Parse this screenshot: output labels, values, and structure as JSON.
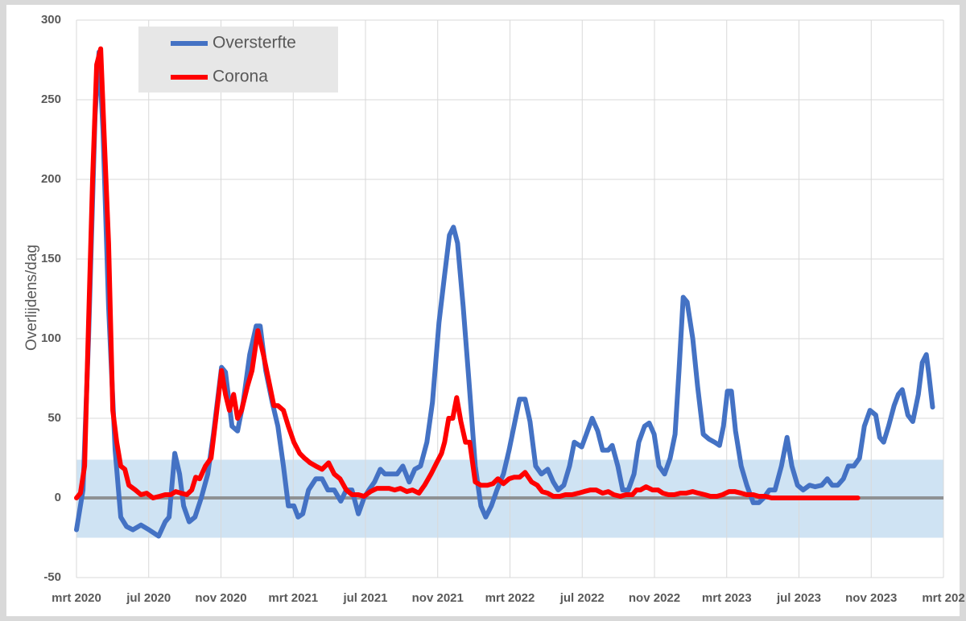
{
  "chart_data": {
    "type": "line",
    "ylabel": "Overlijdens/dag",
    "ylim": [
      -50,
      300
    ],
    "yticks": [
      -50,
      0,
      50,
      100,
      150,
      200,
      250,
      300
    ],
    "xlim": [
      0,
      48
    ],
    "xticks": [
      {
        "value": 0,
        "label": "mrt 2020"
      },
      {
        "value": 4,
        "label": "jul 2020"
      },
      {
        "value": 8,
        "label": "nov 2020"
      },
      {
        "value": 12,
        "label": "mrt 2021"
      },
      {
        "value": 16,
        "label": "jul 2021"
      },
      {
        "value": 20,
        "label": "nov 2021"
      },
      {
        "value": 24,
        "label": "mrt 2022"
      },
      {
        "value": 28,
        "label": "jul 2022"
      },
      {
        "value": 32,
        "label": "nov 2022"
      },
      {
        "value": 36,
        "label": "mrt 2023"
      },
      {
        "value": 40,
        "label": "jul 2023"
      },
      {
        "value": 44,
        "label": "nov 2023"
      },
      {
        "value": 48,
        "label": "mrt 202"
      }
    ],
    "grid": true,
    "legend": "top-left",
    "band": {
      "color": "#cfe3f3",
      "lower": -25,
      "upper": 24
    },
    "series": [
      {
        "name": "Oversterfte",
        "color": "#4472c4",
        "x": [
          0,
          0.36,
          0.67,
          1.03,
          1.25,
          1.47,
          1.78,
          2.14,
          2.45,
          2.77,
          3.12,
          3.57,
          4.01,
          4.55,
          4.91,
          5.13,
          5.44,
          5.71,
          5.93,
          6.24,
          6.56,
          6.91,
          7.27,
          7.58,
          8.03,
          8.25,
          8.61,
          8.92,
          9.23,
          9.59,
          9.95,
          10.17,
          10.48,
          10.84,
          11.15,
          11.46,
          11.73,
          12.04,
          12.27,
          12.53,
          12.85,
          13.25,
          13.6,
          13.92,
          14.27,
          14.63,
          14.94,
          15.25,
          15.61,
          15.92,
          16.19,
          16.5,
          16.82,
          17.08,
          17.39,
          17.75,
          18.07,
          18.42,
          18.73,
          19.05,
          19.4,
          19.71,
          20.07,
          20.38,
          20.65,
          20.87,
          21.1,
          21.41,
          21.72,
          22.08,
          22.39,
          22.66,
          22.97,
          23.28,
          23.64,
          23.95,
          24.31,
          24.53,
          24.84,
          25.11,
          25.42,
          25.74,
          26.09,
          26.4,
          26.67,
          26.98,
          27.3,
          27.56,
          27.97,
          28.23,
          28.55,
          28.86,
          29.13,
          29.44,
          29.66,
          29.97,
          30.24,
          30.55,
          30.87,
          31.13,
          31.45,
          31.71,
          31.98,
          32.25,
          32.56,
          32.87,
          33.14,
          33.36,
          33.59,
          33.81,
          34.12,
          34.39,
          34.7,
          35.01,
          35.33,
          35.6,
          35.82,
          36.04,
          36.26,
          36.49,
          36.8,
          37.11,
          37.47,
          37.78,
          38.05,
          38.36,
          38.67,
          39.03,
          39.34,
          39.61,
          39.92,
          40.23,
          40.59,
          40.9,
          41.26,
          41.57,
          41.84,
          42.15,
          42.46,
          42.73,
          43.04,
          43.35,
          43.62,
          43.93,
          44.25,
          44.47,
          44.69,
          44.96,
          45.27,
          45.5,
          45.72,
          46.03,
          46.3,
          46.61,
          46.83,
          47.05,
          47.19,
          47.4
        ],
        "values": [
          -20,
          5,
          100,
          240,
          280,
          230,
          120,
          30,
          -12,
          -18,
          -20,
          -17,
          -20,
          -24,
          -15,
          -12,
          28,
          15,
          -5,
          -15,
          -12,
          0,
          15,
          40,
          82,
          79,
          45,
          42,
          60,
          90,
          108,
          108,
          80,
          60,
          45,
          20,
          -5,
          -5,
          -12,
          -10,
          5,
          12,
          12,
          5,
          5,
          -2,
          5,
          5,
          -10,
          0,
          5,
          10,
          18,
          15,
          15,
          15,
          20,
          10,
          18,
          20,
          35,
          60,
          110,
          140,
          165,
          170,
          160,
          120,
          75,
          20,
          -5,
          -12,
          -5,
          5,
          15,
          30,
          50,
          62,
          62,
          48,
          20,
          15,
          18,
          10,
          5,
          8,
          20,
          35,
          32,
          40,
          50,
          42,
          30,
          30,
          33,
          20,
          5,
          5,
          15,
          35,
          45,
          47,
          40,
          20,
          15,
          25,
          40,
          80,
          126,
          123,
          100,
          70,
          40,
          37,
          35,
          33,
          45,
          67,
          67,
          42,
          20,
          8,
          -3,
          -3,
          0,
          5,
          5,
          20,
          38,
          20,
          8,
          5,
          8,
          7,
          8,
          12,
          8,
          8,
          12,
          20,
          20,
          25,
          45,
          55,
          52,
          38,
          35,
          45,
          58,
          65,
          68,
          52,
          48,
          65,
          85,
          90,
          78,
          57
        ]
      },
      {
        "name": "Corona",
        "color": "#ff0000",
        "x": [
          0,
          0.22,
          0.45,
          0.67,
          0.89,
          1.12,
          1.34,
          1.56,
          1.78,
          2.01,
          2.23,
          2.45,
          2.68,
          2.9,
          3.26,
          3.57,
          3.88,
          4.24,
          4.6,
          4.91,
          5.22,
          5.49,
          5.8,
          6.11,
          6.38,
          6.6,
          6.82,
          7.14,
          7.45,
          7.72,
          8.03,
          8.25,
          8.47,
          8.7,
          8.92,
          9.14,
          9.46,
          9.72,
          10.04,
          10.35,
          10.62,
          10.93,
          11.15,
          11.46,
          11.73,
          12.04,
          12.36,
          12.62,
          12.94,
          13.25,
          13.6,
          13.96,
          14.27,
          14.59,
          14.94,
          15.25,
          15.61,
          15.92,
          16.28,
          16.64,
          16.95,
          17.31,
          17.62,
          17.93,
          18.29,
          18.6,
          18.96,
          19.27,
          19.63,
          19.94,
          20.21,
          20.38,
          20.61,
          20.83,
          21.05,
          21.28,
          21.54,
          21.77,
          22.08,
          22.39,
          22.75,
          23.06,
          23.33,
          23.64,
          23.95,
          24.22,
          24.53,
          24.84,
          25.2,
          25.51,
          25.78,
          26.09,
          26.4,
          26.76,
          27.07,
          27.43,
          27.79,
          28.1,
          28.46,
          28.77,
          29.13,
          29.44,
          29.75,
          30.11,
          30.42,
          30.78,
          31,
          31.22,
          31.53,
          31.89,
          32.2,
          32.47,
          32.78,
          33.1,
          33.45,
          33.76,
          34.12,
          34.43,
          34.79,
          35.1,
          35.46,
          35.77,
          36.13,
          36.44,
          36.8,
          37.11,
          37.47,
          37.78,
          38.14,
          38.49,
          40.37,
          43.26
        ],
        "values": [
          0,
          3,
          20,
          110,
          200,
          272,
          282,
          220,
          160,
          55,
          35,
          20,
          18,
          8,
          5,
          2,
          3,
          0,
          1,
          2,
          2,
          4,
          3,
          2,
          5,
          13,
          12,
          20,
          25,
          50,
          80,
          65,
          55,
          65,
          50,
          55,
          70,
          80,
          105,
          90,
          75,
          58,
          58,
          55,
          45,
          35,
          28,
          25,
          22,
          20,
          18,
          22,
          15,
          12,
          5,
          2,
          2,
          1,
          4,
          6,
          6,
          6,
          5,
          6,
          4,
          5,
          3,
          8,
          15,
          22,
          28,
          35,
          50,
          50,
          63,
          48,
          35,
          35,
          10,
          8,
          8,
          9,
          12,
          9,
          12,
          13,
          13,
          16,
          10,
          8,
          4,
          3,
          1,
          1,
          2,
          2,
          3,
          4,
          5,
          5,
          3,
          4,
          2,
          1,
          2,
          2,
          5,
          5,
          7,
          5,
          5,
          3,
          2,
          2,
          3,
          3,
          4,
          3,
          2,
          1,
          1,
          2,
          4,
          4,
          3,
          2,
          2,
          1,
          1,
          0,
          0,
          0
        ]
      }
    ]
  }
}
